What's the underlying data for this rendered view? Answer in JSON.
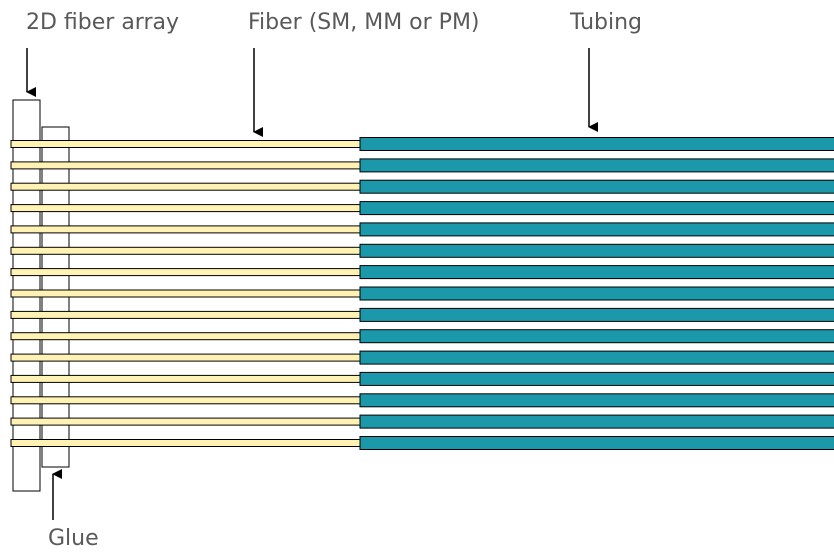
{
  "labels": {
    "fiber_array": "2D fiber array",
    "fiber": "Fiber (SM, MM or PM)",
    "tubing": "Tubing",
    "glue": "Glue"
  },
  "colors": {
    "fiber": "#fff2b3",
    "tubing": "#1b99aa",
    "outline": "#000000",
    "text": "#595959"
  },
  "fiber_count": 15
}
